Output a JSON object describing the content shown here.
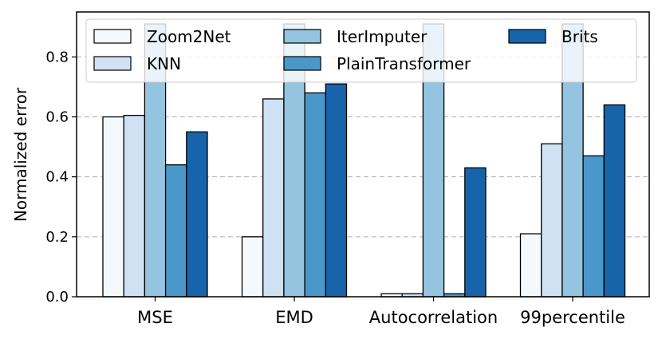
{
  "chart_data": {
    "type": "bar",
    "title": "",
    "xlabel": "",
    "ylabel": "Normalized error",
    "ylim": [
      0,
      0.95
    ],
    "yticks": [
      0.0,
      0.2,
      0.4,
      0.6,
      0.8
    ],
    "ytick_labels": [
      "0.0",
      "0.2",
      "0.4",
      "0.6",
      "0.8"
    ],
    "grid": "horizontal dashed",
    "legend_position": "top",
    "categories": [
      "MSE",
      "EMD",
      "Autocorrelation",
      "99percentile"
    ],
    "series": [
      {
        "name": "Zoom2Net",
        "color": "#f4f9fe",
        "values": [
          0.6,
          0.2,
          0.01,
          0.21
        ]
      },
      {
        "name": "KNN",
        "color": "#cfe1f2",
        "values": [
          0.605,
          0.66,
          0.01,
          0.51
        ]
      },
      {
        "name": "IterImputer",
        "color": "#94c4df",
        "values": [
          0.91,
          0.91,
          0.91,
          0.91
        ]
      },
      {
        "name": "PlainTransformer",
        "color": "#4a98c9",
        "values": [
          0.44,
          0.68,
          0.01,
          0.47
        ]
      },
      {
        "name": "Brits",
        "color": "#1764ab",
        "values": [
          0.55,
          0.71,
          0.43,
          0.64
        ]
      }
    ]
  }
}
